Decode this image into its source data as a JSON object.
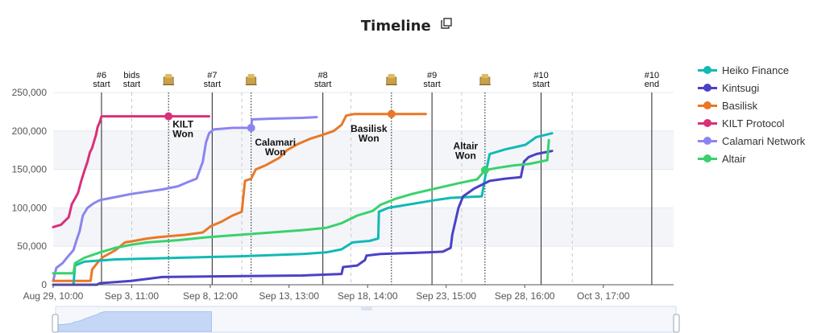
{
  "title": "Timeline",
  "icons": {
    "copy": "copy-icon",
    "crowdloan": "crowdloan-icon"
  },
  "legend": [
    {
      "name": "Heiko Finance",
      "color": "#12b9b4"
    },
    {
      "name": "Kintsugi",
      "color": "#4b41c6"
    },
    {
      "name": "Basilisk",
      "color": "#e97826"
    },
    {
      "name": "KILT Protocol",
      "color": "#d9307a"
    },
    {
      "name": "Calamari Network",
      "color": "#8b84f0"
    },
    {
      "name": "Altair",
      "color": "#3ad16c"
    }
  ],
  "chart_data": {
    "type": "line",
    "title": "Timeline",
    "xlabel": "",
    "ylabel": "",
    "x_unit": "days since Aug 29, 10:00",
    "xlim": [
      0,
      39.8
    ],
    "ylim": [
      0,
      250000
    ],
    "y_ticks": [
      0,
      50000,
      100000,
      150000,
      200000,
      250000
    ],
    "y_tick_labels": [
      "0",
      "50,000",
      "100,000",
      "150,000",
      "200,000",
      "250,000"
    ],
    "x_ticks": [
      0,
      5.04,
      10.08,
      15.13,
      20.17,
      25.21,
      30.25,
      35.29
    ],
    "x_tick_labels": [
      "Aug 29, 10:00",
      "Sep 3, 11:00",
      "Sep 8, 12:00",
      "Sep 13, 13:00",
      "Sep 18, 14:00",
      "Sep 23, 15:00",
      "Sep 28, 16:00",
      "Oct 3, 17:00"
    ],
    "markers": [
      {
        "label": "#6 start",
        "x": 3.1,
        "style": "solid"
      },
      {
        "label": "bids start",
        "x": 5.04,
        "style": "dashed"
      },
      {
        "label": "#7 start",
        "x": 10.2,
        "style": "solid"
      },
      {
        "label": "#8 start",
        "x": 17.3,
        "style": "solid"
      },
      {
        "label": "#9 start",
        "x": 24.3,
        "style": "solid"
      },
      {
        "label": "#10 start",
        "x": 31.3,
        "style": "solid"
      },
      {
        "label": "#10 end",
        "x": 38.4,
        "style": "solid"
      }
    ],
    "dashed_lines": [
      12.1,
      19.1,
      26.2,
      33.3
    ],
    "auction_lines": [
      7.4,
      12.7,
      21.7,
      27.7
    ],
    "winners": [
      {
        "label": "KILT Won",
        "series": "KILT Protocol",
        "x": 7.4,
        "y": 219000
      },
      {
        "label": "Calamari Won",
        "series": "Calamari Network",
        "x": 12.7,
        "y": 204000
      },
      {
        "label": "Basilisk Won",
        "series": "Basilisk",
        "x": 21.7,
        "y": 222000
      },
      {
        "label": "Altair Won",
        "series": "Altair",
        "x": 27.7,
        "y": 149000
      }
    ],
    "series": [
      {
        "name": "KILT Protocol",
        "color": "#d9307a",
        "points": [
          [
            0,
            75000
          ],
          [
            0.5,
            78000
          ],
          [
            0.8,
            84000
          ],
          [
            1.0,
            88000
          ],
          [
            1.2,
            105000
          ],
          [
            1.4,
            112000
          ],
          [
            1.6,
            120000
          ],
          [
            1.8,
            135000
          ],
          [
            2.0,
            148000
          ],
          [
            2.2,
            160000
          ],
          [
            2.35,
            172000
          ],
          [
            2.5,
            178000
          ],
          [
            2.6,
            185000
          ],
          [
            2.75,
            195000
          ],
          [
            2.85,
            205000
          ],
          [
            3.0,
            212000
          ],
          [
            3.1,
            219000
          ],
          [
            7.4,
            219000
          ],
          [
            10.0,
            219000
          ]
        ]
      },
      {
        "name": "Calamari Network",
        "color": "#8b84f0",
        "points": [
          [
            0,
            5000
          ],
          [
            0.2,
            22000
          ],
          [
            0.6,
            28000
          ],
          [
            1.0,
            38000
          ],
          [
            1.3,
            45000
          ],
          [
            1.5,
            58000
          ],
          [
            1.7,
            70000
          ],
          [
            1.9,
            90000
          ],
          [
            2.2,
            100000
          ],
          [
            2.6,
            106000
          ],
          [
            3.0,
            110000
          ],
          [
            4.0,
            114000
          ],
          [
            5.0,
            118000
          ],
          [
            6.0,
            121000
          ],
          [
            7.0,
            124000
          ],
          [
            8.0,
            128000
          ],
          [
            8.7,
            134000
          ],
          [
            9.2,
            138000
          ],
          [
            9.6,
            160000
          ],
          [
            9.8,
            185000
          ],
          [
            10.0,
            197000
          ],
          [
            10.3,
            202000
          ],
          [
            11.5,
            204000
          ],
          [
            12.7,
            204000
          ],
          [
            12.75,
            215000
          ],
          [
            14.0,
            216000
          ],
          [
            16.0,
            217000
          ],
          [
            16.9,
            218000
          ]
        ]
      },
      {
        "name": "Basilisk",
        "color": "#e97826",
        "points": [
          [
            0,
            5000
          ],
          [
            2.4,
            5000
          ],
          [
            2.5,
            20000
          ],
          [
            2.9,
            30000
          ],
          [
            3.2,
            36000
          ],
          [
            4.0,
            45000
          ],
          [
            4.6,
            55000
          ],
          [
            5.2,
            57000
          ],
          [
            6.0,
            60000
          ],
          [
            6.8,
            62000
          ],
          [
            8.5,
            65000
          ],
          [
            9.6,
            68000
          ],
          [
            10.1,
            76000
          ],
          [
            10.8,
            82000
          ],
          [
            11.5,
            90000
          ],
          [
            12.1,
            95000
          ],
          [
            12.3,
            135000
          ],
          [
            12.7,
            138000
          ],
          [
            13.0,
            150000
          ],
          [
            13.6,
            155000
          ],
          [
            14.5,
            165000
          ],
          [
            15.0,
            175000
          ],
          [
            15.7,
            183000
          ],
          [
            16.5,
            190000
          ],
          [
            17.3,
            195000
          ],
          [
            18.0,
            200000
          ],
          [
            18.5,
            208000
          ],
          [
            18.8,
            220000
          ],
          [
            19.3,
            222000
          ],
          [
            21.7,
            222000
          ],
          [
            23.9,
            222000
          ]
        ]
      },
      {
        "name": "Heiko Finance",
        "color": "#12b9b4",
        "points": [
          [
            0,
            0
          ],
          [
            1.3,
            0
          ],
          [
            1.4,
            25000
          ],
          [
            2.0,
            30000
          ],
          [
            4.0,
            33000
          ],
          [
            8.0,
            35000
          ],
          [
            12.0,
            37000
          ],
          [
            16.0,
            40000
          ],
          [
            17.5,
            42000
          ],
          [
            18.5,
            46000
          ],
          [
            19.2,
            55000
          ],
          [
            20.3,
            57000
          ],
          [
            20.85,
            60000
          ],
          [
            20.9,
            95000
          ],
          [
            21.5,
            100000
          ],
          [
            23.0,
            105000
          ],
          [
            24.5,
            110000
          ],
          [
            25.5,
            113000
          ],
          [
            27.5,
            115000
          ],
          [
            27.8,
            150000
          ],
          [
            28.0,
            170000
          ],
          [
            29.0,
            176000
          ],
          [
            30.3,
            182000
          ],
          [
            31.0,
            192000
          ],
          [
            32.0,
            197000
          ]
        ]
      },
      {
        "name": "Kintsugi",
        "color": "#4b41c6",
        "points": [
          [
            0,
            0
          ],
          [
            2.8,
            0
          ],
          [
            3.0,
            2000
          ],
          [
            5.0,
            5000
          ],
          [
            7.0,
            10000
          ],
          [
            11.0,
            11000
          ],
          [
            16.0,
            12000
          ],
          [
            18.5,
            14000
          ],
          [
            18.6,
            23000
          ],
          [
            19.5,
            25000
          ],
          [
            20.0,
            32000
          ],
          [
            20.1,
            38000
          ],
          [
            21.0,
            40000
          ],
          [
            24.0,
            42000
          ],
          [
            25.0,
            43000
          ],
          [
            25.5,
            48000
          ],
          [
            25.6,
            65000
          ],
          [
            26.0,
            100000
          ],
          [
            26.3,
            115000
          ],
          [
            27.0,
            125000
          ],
          [
            28.0,
            135000
          ],
          [
            29.0,
            138000
          ],
          [
            30.0,
            140000
          ],
          [
            30.2,
            160000
          ],
          [
            30.5,
            166000
          ],
          [
            31.0,
            170000
          ],
          [
            32.0,
            174000
          ]
        ]
      },
      {
        "name": "Altair",
        "color": "#3ad16c",
        "points": [
          [
            0,
            15000
          ],
          [
            1.3,
            15000
          ],
          [
            1.4,
            28000
          ],
          [
            2.0,
            35000
          ],
          [
            3.0,
            42000
          ],
          [
            4.0,
            48000
          ],
          [
            5.0,
            52000
          ],
          [
            6.0,
            55000
          ],
          [
            8.0,
            58000
          ],
          [
            10.0,
            62000
          ],
          [
            12.0,
            65000
          ],
          [
            14.0,
            68000
          ],
          [
            16.0,
            71000
          ],
          [
            17.5,
            74000
          ],
          [
            18.5,
            80000
          ],
          [
            19.5,
            90000
          ],
          [
            20.5,
            96000
          ],
          [
            21.0,
            104000
          ],
          [
            22.0,
            112000
          ],
          [
            23.0,
            118000
          ],
          [
            24.5,
            125000
          ],
          [
            26.0,
            132000
          ],
          [
            27.2,
            137000
          ],
          [
            27.7,
            149000
          ],
          [
            28.5,
            152000
          ],
          [
            29.5,
            155000
          ],
          [
            30.5,
            157000
          ],
          [
            31.0,
            159000
          ],
          [
            31.7,
            162000
          ],
          [
            31.8,
            188000
          ]
        ]
      }
    ]
  }
}
